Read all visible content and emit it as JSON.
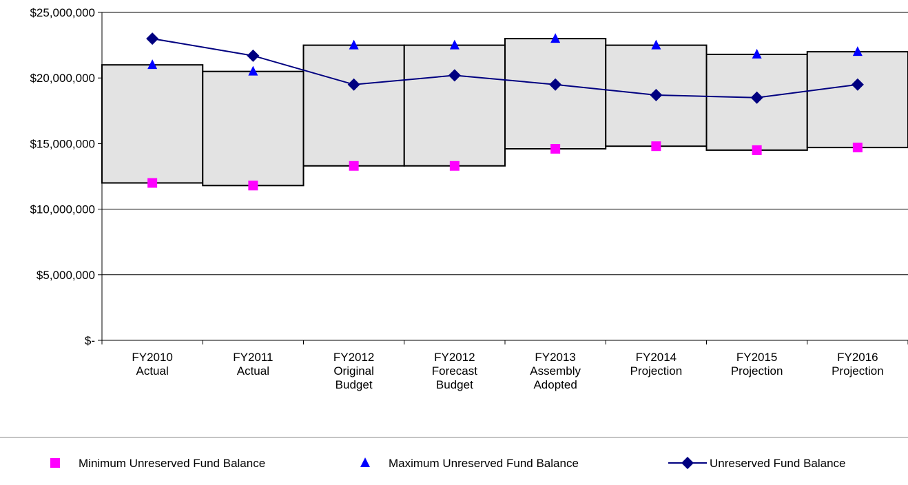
{
  "chart_data": {
    "type": "range_line",
    "categories": [
      "FY2010 Actual",
      "FY2011 Actual",
      "FY2012 Original Budget",
      "FY2012 Forecast Budget",
      "FY2013 Assembly Adopted",
      "FY2014 Projection",
      "FY2015 Projection",
      "FY2016 Projection"
    ],
    "series": [
      {
        "name": "Minimum Unreserved Fund Balance",
        "color": "#ff00ff",
        "marker": "square",
        "values": [
          12000000,
          11800000,
          13300000,
          13300000,
          14600000,
          14800000,
          14500000,
          14700000
        ]
      },
      {
        "name": "Maximum Unreserved Fund Balance",
        "color": "#0000ff",
        "marker": "triangle",
        "values": [
          21000000,
          20500000,
          22500000,
          22500000,
          23000000,
          22500000,
          21800000,
          22000000
        ]
      },
      {
        "name": "Unreserved Fund Balance",
        "color": "#000080",
        "marker": "diamond",
        "line": true,
        "values": [
          23000000,
          21700000,
          19500000,
          20200000,
          19500000,
          18700000,
          18500000,
          19500000
        ]
      }
    ],
    "range_fill": "#e3e3e3",
    "ylim": [
      0,
      25000000
    ],
    "yticks": [
      {
        "value": 0,
        "label": "$-"
      },
      {
        "value": 5000000,
        "label": "$5,000,000"
      },
      {
        "value": 10000000,
        "label": "$10,000,000"
      },
      {
        "value": 15000000,
        "label": "$15,000,000"
      },
      {
        "value": 20000000,
        "label": "$20,000,000"
      },
      {
        "value": 25000000,
        "label": "$25,000,000"
      }
    ],
    "grid": true,
    "legend": "bottom"
  }
}
